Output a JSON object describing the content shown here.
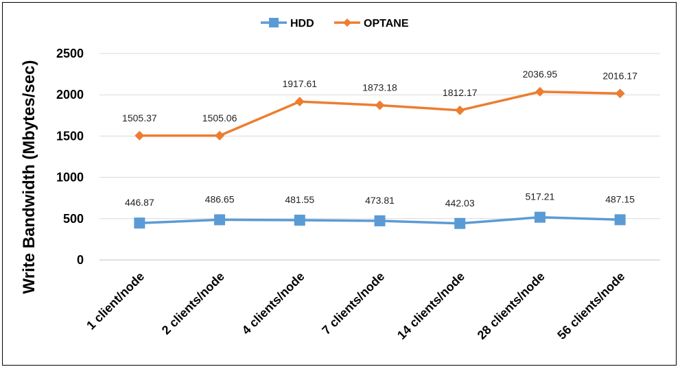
{
  "chart_data": {
    "type": "line",
    "categories": [
      "1 client/node",
      "2 clients/node",
      "4 clients/node",
      "7 clients/node",
      "14 clients/node",
      "28 clients/node",
      "56 clients/node"
    ],
    "series": [
      {
        "name": "HDD",
        "values": [
          446.87,
          486.65,
          481.55,
          473.81,
          442.03,
          517.21,
          487.15
        ],
        "labels": [
          "446.87",
          "486.65",
          "481.55",
          "473.81",
          "442.03",
          "517.21",
          "487.15"
        ],
        "color": "#5B9BD5",
        "marker": "square"
      },
      {
        "name": "OPTANE",
        "values": [
          1505.37,
          1505.06,
          1917.61,
          1873.18,
          1812.17,
          2036.95,
          2016.17
        ],
        "labels": [
          "1505.37",
          "1505.06",
          "1917.61",
          "1873.18",
          "1812.17",
          "2036.95",
          "2016.17"
        ],
        "color": "#ED7D31",
        "marker": "diamond"
      }
    ],
    "ylabel": "Write Bandwidth (Mbytes/sec)",
    "xlabel": "",
    "ylim": [
      0,
      2500
    ],
    "yticks": [
      "0",
      "500",
      "1000",
      "1500",
      "2000",
      "2500"
    ],
    "grid": true,
    "legend_position": "top-center"
  }
}
